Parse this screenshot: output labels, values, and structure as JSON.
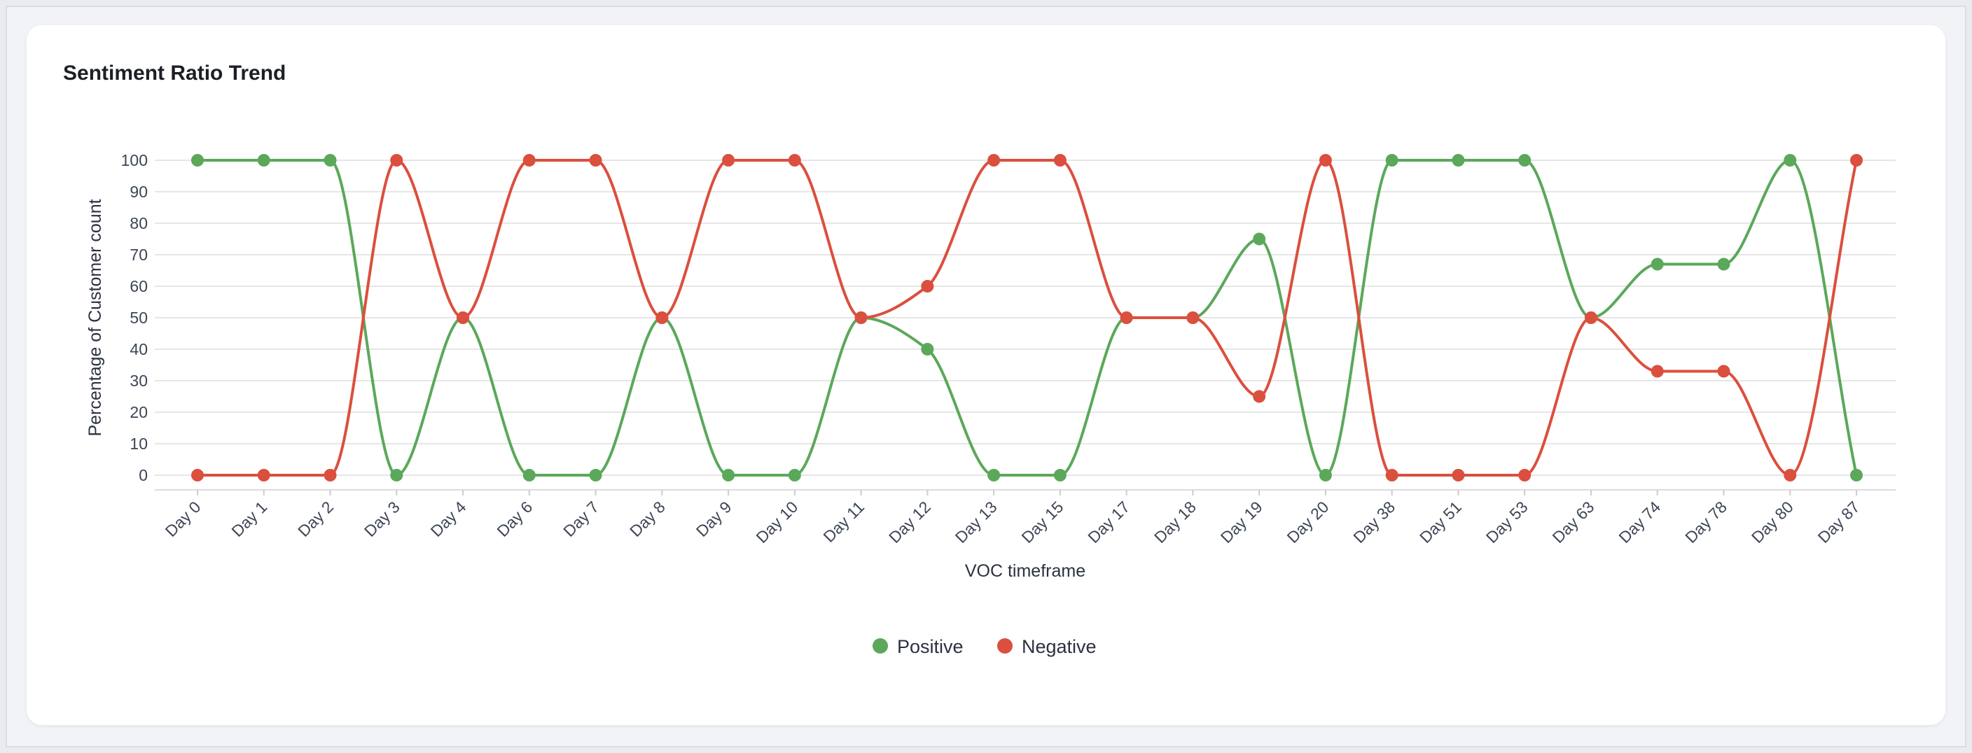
{
  "title": "Sentiment Ratio Trend",
  "colors": {
    "positive": "#5BA85B",
    "negative": "#DB4F3E",
    "grid": "#e6e6e6"
  },
  "chart_data": {
    "type": "line",
    "title": "Sentiment Ratio Trend",
    "xlabel": "VOC timeframe",
    "ylabel": "Percentage of Customer count",
    "ylim": [
      0,
      100
    ],
    "yticks": [
      0,
      10,
      20,
      30,
      40,
      50,
      60,
      70,
      80,
      90,
      100
    ],
    "grid": true,
    "legend_position": "bottom-center",
    "categories": [
      "Day 0",
      "Day 1",
      "Day 2",
      "Day 3",
      "Day 4",
      "Day 6",
      "Day 7",
      "Day 8",
      "Day 9",
      "Day 10",
      "Day 11",
      "Day 12",
      "Day 13",
      "Day 15",
      "Day 17",
      "Day 18",
      "Day 19",
      "Day 20",
      "Day 38",
      "Day 51",
      "Day 53",
      "Day 63",
      "Day 74",
      "Day 78",
      "Day 80",
      "Day 87"
    ],
    "series": [
      {
        "name": "Positive",
        "color": "#5BA85B",
        "values": [
          100,
          100,
          100,
          0,
          50,
          0,
          0,
          50,
          0,
          0,
          50,
          40,
          0,
          0,
          50,
          50,
          75,
          0,
          100,
          100,
          100,
          50,
          67,
          67,
          100,
          0
        ]
      },
      {
        "name": "Negative",
        "color": "#DB4F3E",
        "values": [
          0,
          0,
          0,
          100,
          50,
          100,
          100,
          50,
          100,
          100,
          50,
          60,
          100,
          100,
          50,
          50,
          25,
          100,
          0,
          0,
          0,
          50,
          33,
          33,
          0,
          100
        ]
      }
    ]
  }
}
